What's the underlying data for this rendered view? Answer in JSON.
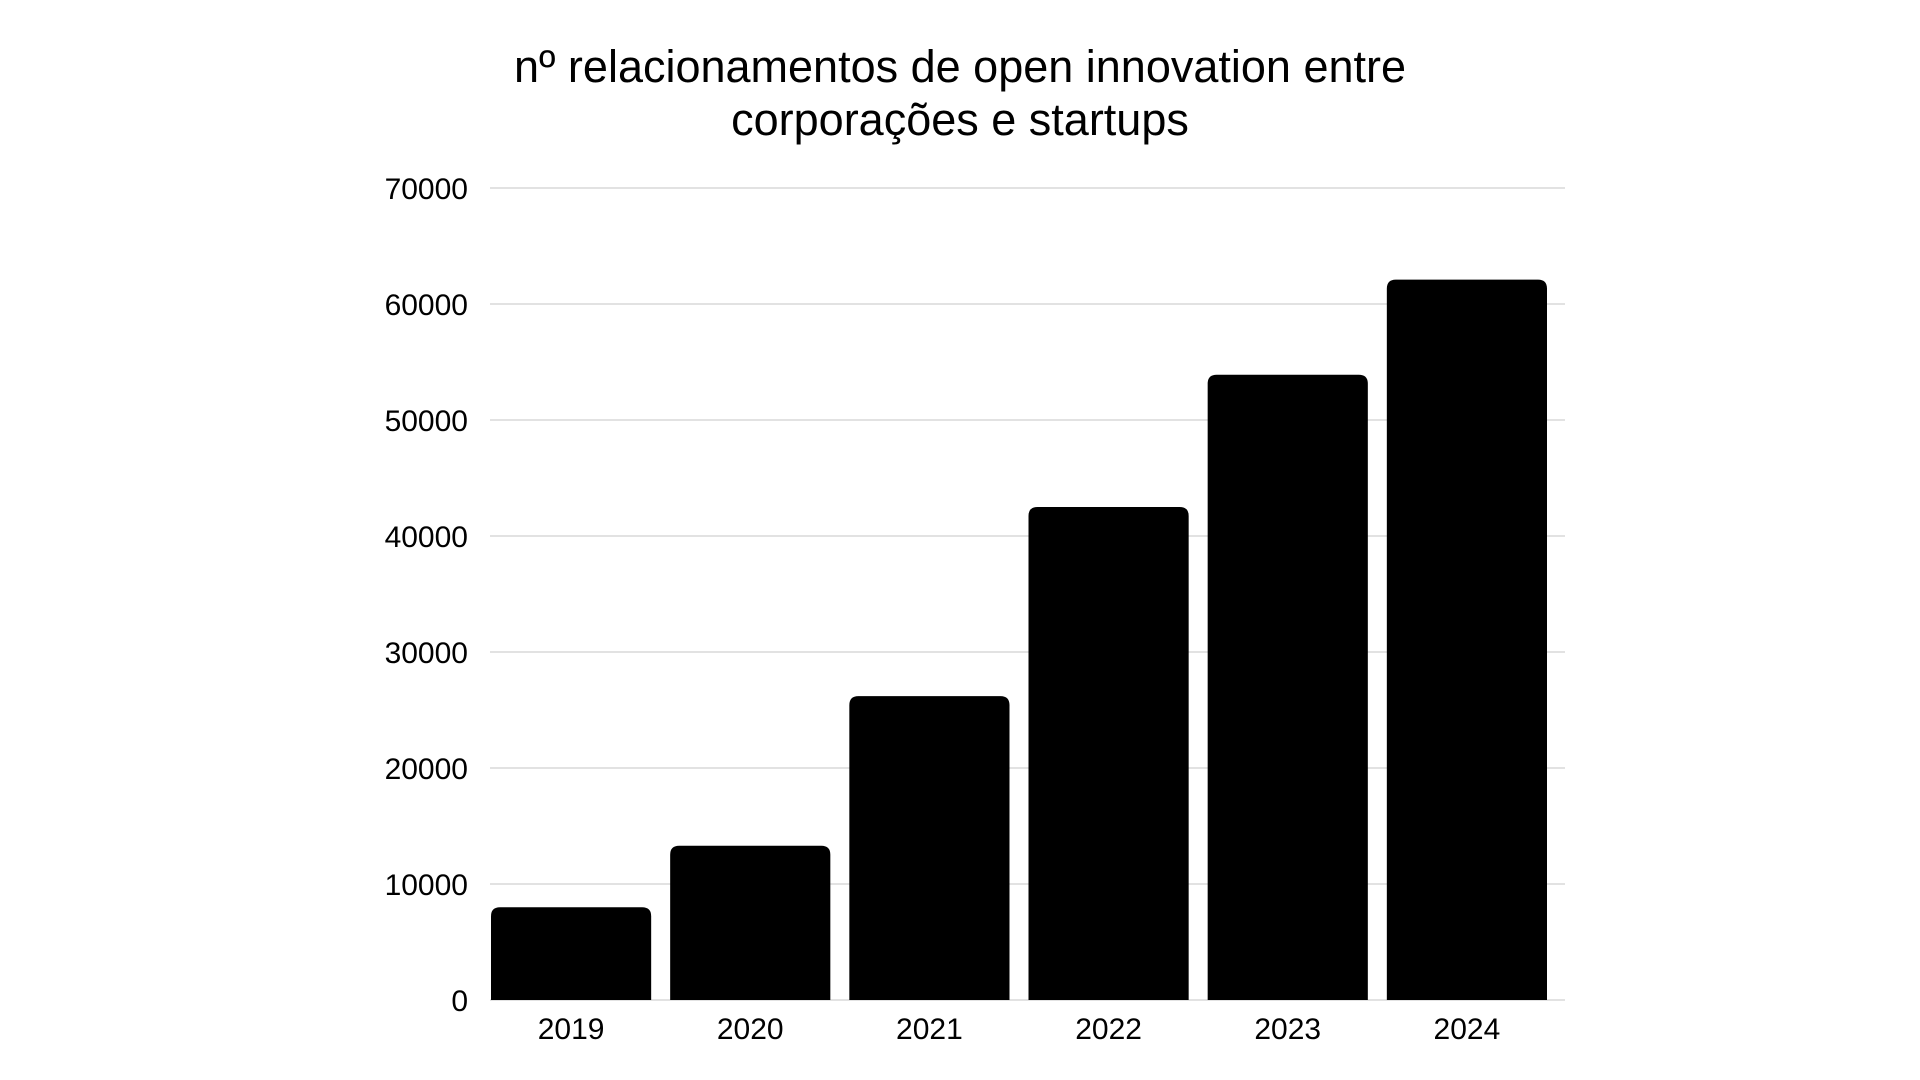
{
  "chart_data": {
    "type": "bar",
    "title_lines": [
      "nº relacionamentos de open innovation entre",
      "corporações e startups"
    ],
    "xlabel": "",
    "ylabel": "",
    "categories": [
      "2019",
      "2020",
      "2021",
      "2022",
      "2023",
      "2024"
    ],
    "values": [
      8000,
      13300,
      26200,
      42500,
      53900,
      62100
    ],
    "ylim": [
      0,
      70000
    ],
    "yticks": [
      0,
      10000,
      20000,
      30000,
      40000,
      50000,
      60000,
      70000
    ],
    "ytick_labels": [
      "0",
      "10000",
      "20000",
      "30000",
      "40000",
      "50000",
      "60000",
      "70000"
    ],
    "grid": true,
    "legend": "none",
    "bar_color": "#000000",
    "grid_color": "#d9d9d9"
  }
}
